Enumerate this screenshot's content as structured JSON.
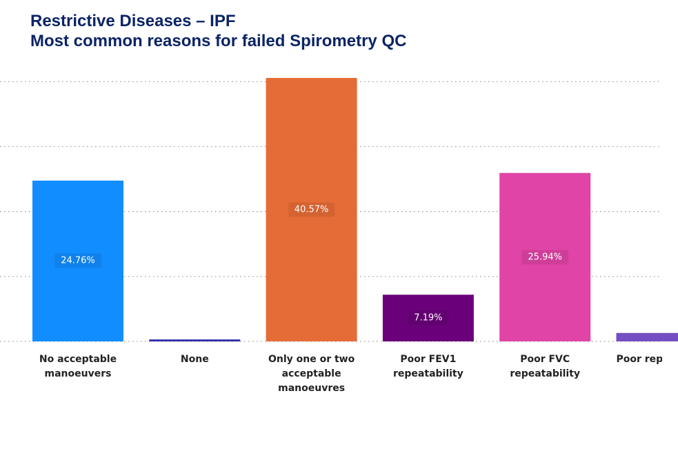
{
  "title_line1": "Restrictive Diseases – IPF",
  "title_line2": "Most common reasons for failed Spirometry QC",
  "chart_data": {
    "type": "bar",
    "title": "Restrictive Diseases – IPF Most common reasons for failed Spirometry QC",
    "xlabel": "",
    "ylabel": "",
    "ylim": [
      0,
      40
    ],
    "grid": true,
    "categories": [
      "No acceptable manoeuvers",
      "None",
      "Only one or two acceptable manoeuvres",
      "Poor FEV1 repeatability",
      "Poor FVC repeatability",
      "Poor rep"
    ],
    "values": [
      24.76,
      0.3,
      40.57,
      7.19,
      25.94,
      1.3
    ],
    "data_labels": [
      "24.76%",
      null,
      "40.57%",
      "7.19%",
      "25.94%",
      null
    ],
    "colors": [
      "#118dff",
      "#2c2ca8",
      "#e66c37",
      "#6b007b",
      "#e044a7",
      "#744ec2"
    ]
  }
}
